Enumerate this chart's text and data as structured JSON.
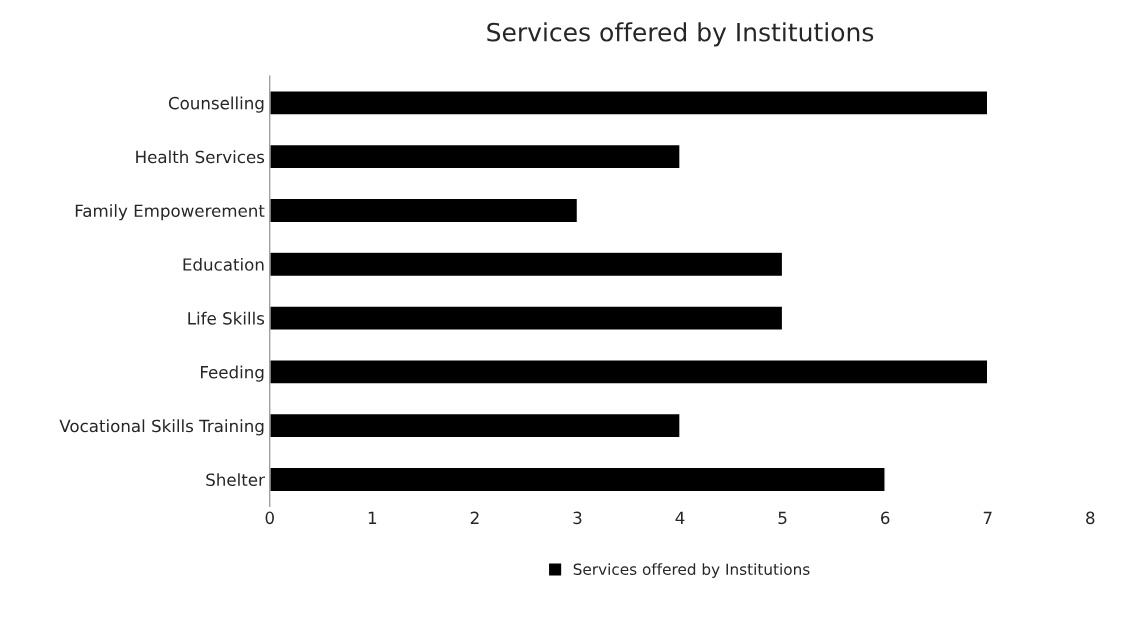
{
  "chart_data": {
    "type": "bar",
    "orientation": "horizontal",
    "title": "Services offered by Institutions",
    "categories": [
      "Counselling",
      "Health Services",
      "Family Empowerement",
      "Education",
      "Life Skills",
      "Feeding",
      "Vocational Skills Training",
      "Shelter"
    ],
    "series": [
      {
        "name": "Services offered by Institutions",
        "color": "#000000",
        "values": [
          7,
          4,
          3,
          5,
          5,
          7,
          4,
          6
        ]
      }
    ],
    "xlim": [
      0,
      8
    ],
    "xticks": [
      0,
      1,
      2,
      3,
      4,
      5,
      6,
      7,
      8
    ],
    "grid": false,
    "legend": "bottom"
  }
}
